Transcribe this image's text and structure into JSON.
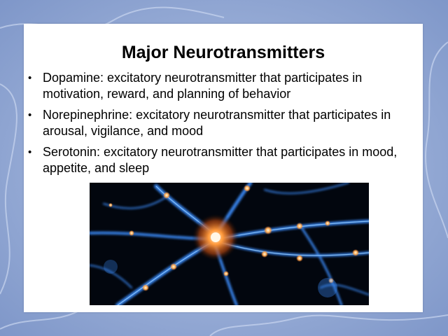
{
  "slide": {
    "title": "Major Neurotransmitters",
    "bullets": [
      {
        "text": "Dopamine: excitatory neurotransmitter that participates in motivation, reward, and planning of behavior"
      },
      {
        "text": "Norepinephrine: excitatory neurotransmitter that participates in arousal, vigilance, and mood"
      },
      {
        "text": "Serotonin: excitatory neurotransmitter that participates in mood, appetite, and sleep"
      }
    ],
    "bullet_glyph": "•"
  },
  "image": {
    "icon": "neuron-illustration"
  },
  "colors": {
    "background": "#8fa6d3",
    "slide": "#ffffff",
    "text": "#000000",
    "neuron_glow": "#ff8a3d",
    "neuron_dendrite": "#4aa6ff"
  }
}
